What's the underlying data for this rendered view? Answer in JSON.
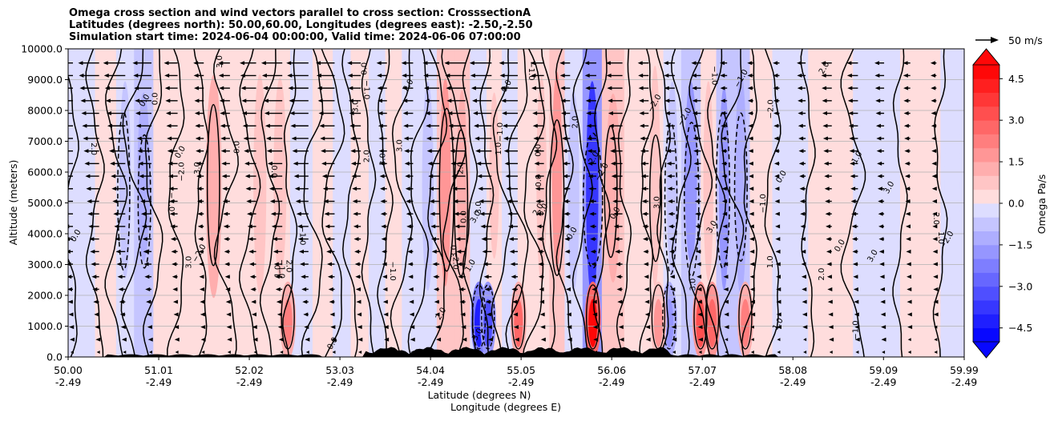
{
  "chart_data": {
    "type": "heatmap",
    "title_lines": [
      "Omega cross section and wind vectors parallel to cross section: CrosssectionA",
      "Latitudes (degrees north): 50.00,60.00, Longitudes (degrees east): -2.50,-2.50",
      "Simulation start time: 2024-06-04 00:00:00, Valid time: 2024-06-06 07:00:00"
    ],
    "ylabel": "Altitude (meters)",
    "xlabel_lines": [
      "Latitude (degrees N)",
      "Longitude (degrees E)"
    ],
    "xlim": [
      50.0,
      59.99
    ],
    "ylim": [
      0,
      10000
    ],
    "grid": "horizontal",
    "y_ticks": [
      {
        "value": 0,
        "label": "0.0"
      },
      {
        "value": 1000,
        "label": "1000.0"
      },
      {
        "value": 2000,
        "label": "2000.0"
      },
      {
        "value": 3000,
        "label": "3000.0"
      },
      {
        "value": 4000,
        "label": "4000.0"
      },
      {
        "value": 5000,
        "label": "5000.0"
      },
      {
        "value": 6000,
        "label": "6000.0"
      },
      {
        "value": 7000,
        "label": "7000.0"
      },
      {
        "value": 8000,
        "label": "8000.0"
      },
      {
        "value": 9000,
        "label": "9000.0"
      },
      {
        "value": 10000,
        "label": "10000.0"
      }
    ],
    "x_ticks": [
      {
        "value": 50.0,
        "lat": "50.00",
        "lon": "-2.49"
      },
      {
        "value": 51.01,
        "lat": "51.01",
        "lon": "-2.49"
      },
      {
        "value": 52.02,
        "lat": "52.02",
        "lon": "-2.49"
      },
      {
        "value": 53.03,
        "lat": "53.03",
        "lon": "-2.49"
      },
      {
        "value": 54.04,
        "lat": "54.04",
        "lon": "-2.49"
      },
      {
        "value": 55.05,
        "lat": "55.05",
        "lon": "-2.49"
      },
      {
        "value": 56.06,
        "lat": "56.06",
        "lon": "-2.49"
      },
      {
        "value": 57.07,
        "lat": "57.07",
        "lon": "-2.49"
      },
      {
        "value": 58.08,
        "lat": "58.08",
        "lon": "-2.49"
      },
      {
        "value": 59.09,
        "lat": "59.09",
        "lon": "-2.49"
      },
      {
        "value": 59.99,
        "lat": "59.99",
        "lon": "-2.49"
      }
    ],
    "colorbar": {
      "label": "Omega Pa/s",
      "range": [
        -5.0,
        5.0
      ],
      "ticks": [
        {
          "value": 4.5,
          "label": "4.5"
        },
        {
          "value": 3.0,
          "label": "3.0"
        },
        {
          "value": 1.5,
          "label": "1.5"
        },
        {
          "value": 0.0,
          "label": "0.0"
        },
        {
          "value": -1.5,
          "label": "−1.5"
        },
        {
          "value": -3.0,
          "label": "−3.0"
        },
        {
          "value": -4.5,
          "label": "−4.5"
        }
      ],
      "extend": "both",
      "positive_color": "#ff0000",
      "negative_color": "#0000ff"
    },
    "quiver_key": {
      "label": "50 m/s",
      "value": 50
    },
    "bands": [
      {
        "x": 50.15,
        "omega": -0.2
      },
      {
        "x": 50.45,
        "omega": 0.25
      },
      {
        "x": 50.62,
        "omega": -1.0
      },
      {
        "x": 50.85,
        "omega": -1.2
      },
      {
        "x": 51.05,
        "omega": 0.3
      },
      {
        "x": 51.35,
        "omega": 0.2
      },
      {
        "x": 51.62,
        "omega": 1.1
      },
      {
        "x": 51.9,
        "omega": 0.3
      },
      {
        "x": 52.15,
        "omega": 0.6
      },
      {
        "x": 52.35,
        "omega": 0.8
      },
      {
        "x": 52.6,
        "omega": -0.3
      },
      {
        "x": 52.85,
        "omega": 0.5
      },
      {
        "x": 53.05,
        "omega": -0.2
      },
      {
        "x": 53.25,
        "omega": 0.4
      },
      {
        "x": 53.45,
        "omega": -0.3
      },
      {
        "x": 53.62,
        "omega": 0.5
      },
      {
        "x": 53.82,
        "omega": -0.4
      },
      {
        "x": 54.0,
        "omega": -0.6
      },
      {
        "x": 54.22,
        "omega": 2.0
      },
      {
        "x": 54.38,
        "omega": 1.5
      },
      {
        "x": 54.58,
        "omega": -0.5
      },
      {
        "x": 54.75,
        "omega": 0.6
      },
      {
        "x": 54.92,
        "omega": -0.4
      },
      {
        "x": 55.1,
        "omega": 0.3
      },
      {
        "x": 55.28,
        "omega": 0.8
      },
      {
        "x": 55.45,
        "omega": 1.8
      },
      {
        "x": 55.62,
        "omega": -0.8
      },
      {
        "x": 55.85,
        "omega": -4.0
      },
      {
        "x": 56.05,
        "omega": 1.2
      },
      {
        "x": 56.35,
        "omega": 0.3
      },
      {
        "x": 56.55,
        "omega": 0.9
      },
      {
        "x": 56.72,
        "omega": -1.0
      },
      {
        "x": 56.95,
        "omega": -2.0
      },
      {
        "x": 57.15,
        "omega": 0.6
      },
      {
        "x": 57.3,
        "omega": -1.6
      },
      {
        "x": 57.5,
        "omega": -1.2
      },
      {
        "x": 57.7,
        "omega": 0.4
      },
      {
        "x": 58.0,
        "omega": -0.4
      },
      {
        "x": 58.5,
        "omega": 0.3
      },
      {
        "x": 59.0,
        "omega": -0.3
      },
      {
        "x": 59.55,
        "omega": 0.2
      },
      {
        "x": 59.9,
        "omega": -0.2
      }
    ],
    "low_level_cells": [
      {
        "x": 52.45,
        "omega": 2.4
      },
      {
        "x": 54.58,
        "omega": -4.2
      },
      {
        "x": 54.68,
        "omega": -3.2
      },
      {
        "x": 55.02,
        "omega": 2.6
      },
      {
        "x": 55.85,
        "omega": 4.8
      },
      {
        "x": 56.7,
        "omega": -2.0
      },
      {
        "x": 57.05,
        "omega": 3.4
      },
      {
        "x": 57.18,
        "omega": 2.8
      },
      {
        "x": 57.55,
        "omega": 2.5
      },
      {
        "x": 56.58,
        "omega": 1.8
      }
    ],
    "contour_labels": [
      "0.0",
      "1.0",
      "−1.0",
      "2.0",
      "−2.0",
      "3.0"
    ]
  }
}
